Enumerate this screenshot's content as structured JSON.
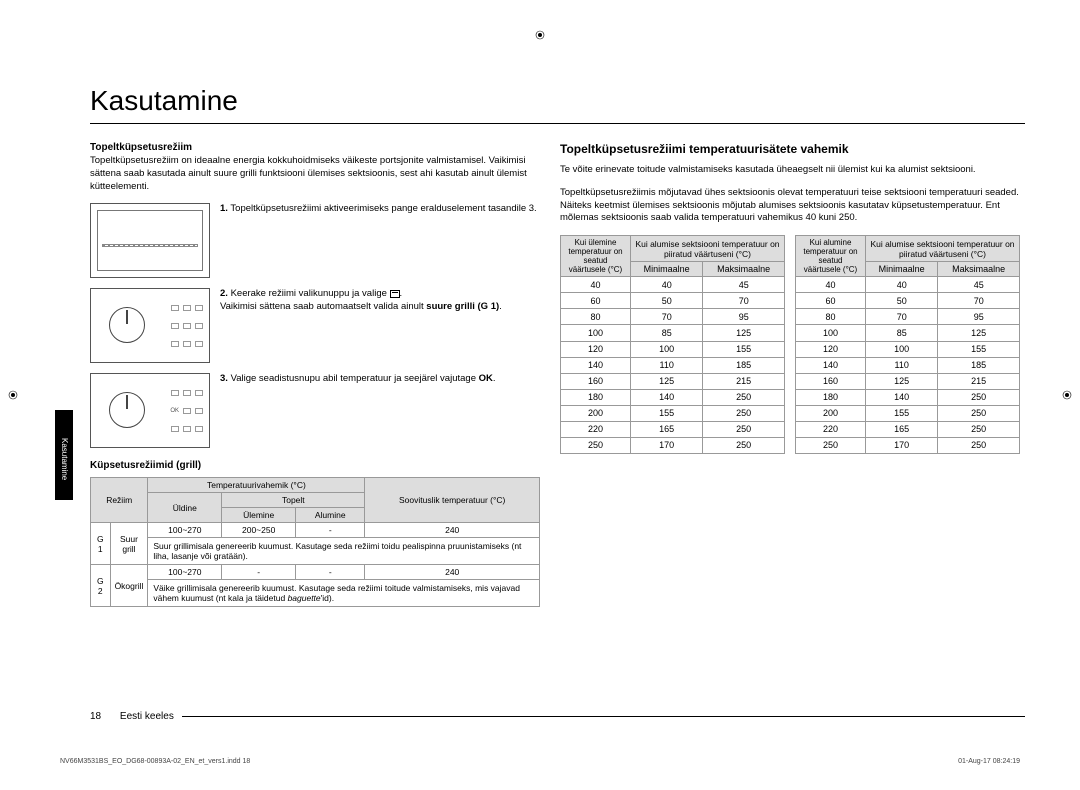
{
  "title": "Kasutamine",
  "side_tab": "Kasutamine",
  "left": {
    "heading": "Topeltküpsetusrežiim",
    "intro": "Topeltküpsetusrežiim on ideaalne energia kokkuhoidmiseks väikeste portsjonite valmistamisel. Vaikimisi sättena saab kasutada ainult suure grilli funktsiooni ülemises sektsioonis, sest ahi kasutab ainult ülemist kütteelementi.",
    "steps": [
      {
        "n": "1.",
        "text": "Topeltküpsetusrežiimi aktiveerimiseks pange eralduselement tasandile 3."
      },
      {
        "n": "2.",
        "text_a": "Keerake režiimi valikunuppu ja valige ",
        "text_b": ".",
        "note": "Vaikimisi sättena saab automaatselt valida ainult ",
        "note_bold": "suure grilli (G 1)",
        "note_end": "."
      },
      {
        "n": "3.",
        "text_a": "Valige seadistusnupu abil temperatuur ja seejärel vajutage ",
        "text_bold": "OK",
        "text_end": "."
      }
    ],
    "grill_heading": "Küpsetusrežiimid (grill)",
    "grill_table": {
      "h_mode": "Režiim",
      "h_range": "Temperatuurivahemik (°C)",
      "h_uldine": "Üldine",
      "h_topelt": "Topelt",
      "h_upper": "Ülemine",
      "h_lower": "Alumine",
      "h_rec": "Soovituslik temperatuur (°C)",
      "rows": [
        {
          "code": "G 1",
          "name1": "Suur",
          "name2": "grill",
          "uldine": "100~270",
          "upper": "200~250",
          "lower": "-",
          "rec": "240",
          "note": "Suur grillimisala genereerib kuumust. Kasutage seda režiimi toidu pealispinna pruunistamiseks (nt liha, lasanje või gratään)."
        },
        {
          "code": "G 2",
          "name1": "Ökogrill",
          "uldine": "100~270",
          "upper": "-",
          "lower": "-",
          "rec": "240",
          "note_a": "Väike grillimisala genereerib kuumust. Kasutage seda režiimi toitude valmistamiseks, mis vajavad vähem kuumust (nt kala ja täidetud ",
          "note_it": "baguette",
          "note_b": "'id)."
        }
      ]
    }
  },
  "right": {
    "heading": "Topeltküpsetusrežiimi temperatuurisätete vahemik",
    "p1": "Te võite erinevate toitude valmistamiseks kasutada üheaegselt nii ülemist kui ka alumist sektsiooni.",
    "p2": "Topeltküpsetusrežiimis mõjutavad ühes sektsioonis olevat temperatuuri teise sektsiooni temperatuuri seaded. Näiteks keetmist ülemises sektsioonis mõjutab alumises sektsioonis kasutatav küpsetustemperatuur. Ent mõlemas sektsioonis saab valida temperatuuri vahemikus 40 kuni 250.",
    "temp_headers": {
      "left_a": "Kui ülemine temperatuur on seatud väärtusele (°C)",
      "right_a": "Kui alumise sektsiooni temperatuur on piiratud väärtuseni (°C)",
      "min": "Minimaalne",
      "max": "Maksimaalne",
      "left_b": "Kui alumine temperatuur on seatud väärtusele (°C)",
      "right_b": "Kui alumise sektsiooni temperatuur on piiratud väärtuseni (°C)"
    },
    "temp_rows": [
      [
        "40",
        "40",
        "45"
      ],
      [
        "60",
        "50",
        "70"
      ],
      [
        "80",
        "70",
        "95"
      ],
      [
        "100",
        "85",
        "125"
      ],
      [
        "120",
        "100",
        "155"
      ],
      [
        "140",
        "110",
        "185"
      ],
      [
        "160",
        "125",
        "215"
      ],
      [
        "180",
        "140",
        "250"
      ],
      [
        "200",
        "155",
        "250"
      ],
      [
        "220",
        "165",
        "250"
      ],
      [
        "250",
        "170",
        "250"
      ]
    ]
  },
  "footer": {
    "pagenum": "18",
    "lang": "Eesti keeles",
    "file": "NV66M3531BS_EO_DG68-00893A-02_EN_et_vers1.indd   18",
    "date": "01-Aug-17   08:24:19"
  },
  "colors": {
    "header_bg": "#dddddd",
    "border": "#999999",
    "text": "#000000"
  }
}
